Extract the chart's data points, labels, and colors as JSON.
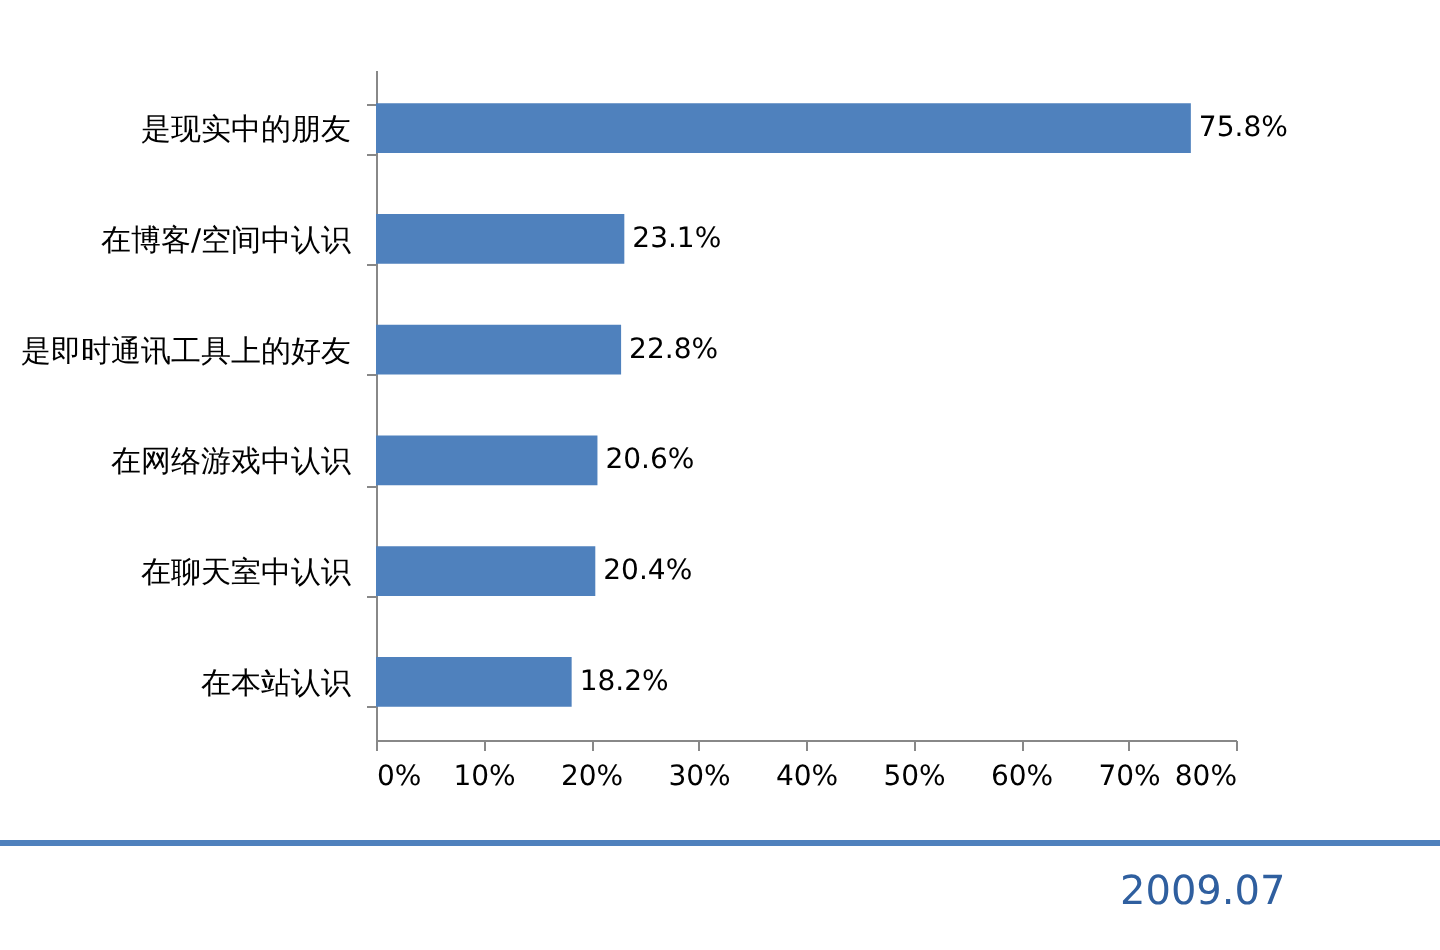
{
  "chart_data": {
    "type": "bar",
    "orientation": "horizontal",
    "categories": [
      "是现实中的朋友",
      "在博客/空间中认识",
      "是即时通讯工具上的好友",
      "在网络游戏中认识",
      "在聊天室中认识",
      "在本站认识"
    ],
    "values": [
      75.8,
      23.1,
      22.8,
      20.6,
      20.4,
      18.2
    ],
    "value_labels": [
      "75.8%",
      "23.1%",
      "22.8%",
      "20.6%",
      "20.4%",
      "18.2%"
    ],
    "color": "#4f81bd",
    "xlim": [
      0,
      80
    ],
    "xticks": [
      {
        "value": 0,
        "label": "0%"
      },
      {
        "value": 10,
        "label": "10%"
      },
      {
        "value": 20,
        "label": "20%"
      },
      {
        "value": 30,
        "label": "30%"
      },
      {
        "value": 40,
        "label": "40%"
      },
      {
        "value": 50,
        "label": "50%"
      },
      {
        "value": 60,
        "label": "60%"
      },
      {
        "value": 70,
        "label": "70%"
      },
      {
        "value": 80,
        "label": "80%"
      }
    ],
    "grid": false,
    "annotations": [
      "2009.07"
    ]
  }
}
